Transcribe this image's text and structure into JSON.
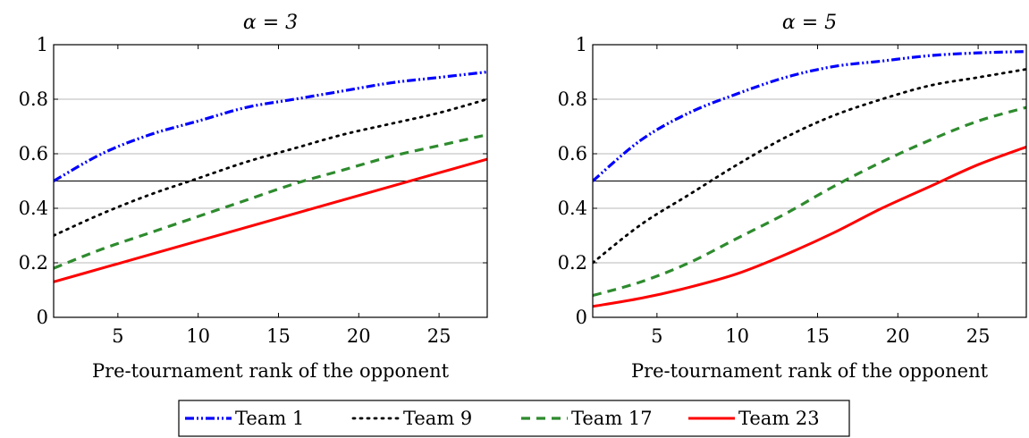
{
  "chart_data": [
    {
      "type": "line",
      "title": "α = 3",
      "xlabel": "Pre-tournament rank of the opponent",
      "ylabel": "",
      "xlim": [
        1,
        28
      ],
      "ylim": [
        0,
        1
      ],
      "xticks": [
        "5",
        "10",
        "15",
        "20",
        "25"
      ],
      "yticks": [
        "0",
        "0.2",
        "0.4",
        "0.6",
        "0.8",
        "1"
      ],
      "grid": "horizontal",
      "reference_line": 0.5,
      "x": [
        1,
        4,
        7,
        10,
        13,
        16,
        19,
        22,
        25,
        28
      ],
      "series": [
        {
          "name": "Team 1",
          "color": "#0000ff",
          "style": "dash-dot-dot",
          "values": [
            0.5,
            0.6,
            0.67,
            0.72,
            0.77,
            0.8,
            0.83,
            0.86,
            0.88,
            0.9
          ]
        },
        {
          "name": "Team 9",
          "color": "#000000",
          "style": "dotted",
          "values": [
            0.3,
            0.38,
            0.45,
            0.51,
            0.57,
            0.62,
            0.67,
            0.71,
            0.75,
            0.8
          ]
        },
        {
          "name": "Team 17",
          "color": "#2e8b2e",
          "style": "dashed",
          "values": [
            0.18,
            0.25,
            0.31,
            0.37,
            0.43,
            0.49,
            0.54,
            0.59,
            0.63,
            0.67
          ]
        },
        {
          "name": "Team 23",
          "color": "#ff0000",
          "style": "solid",
          "values": [
            0.13,
            0.18,
            0.23,
            0.28,
            0.33,
            0.38,
            0.43,
            0.48,
            0.53,
            0.58
          ]
        }
      ]
    },
    {
      "type": "line",
      "title": "α = 5",
      "xlabel": "Pre-tournament rank of the opponent",
      "ylabel": "",
      "xlim": [
        1,
        28
      ],
      "ylim": [
        0,
        1
      ],
      "xticks": [
        "5",
        "10",
        "15",
        "20",
        "25"
      ],
      "yticks": [
        "0",
        "0.2",
        "0.4",
        "0.6",
        "0.8",
        "1"
      ],
      "grid": "horizontal",
      "reference_line": 0.5,
      "x": [
        1,
        4,
        7,
        10,
        13,
        16,
        19,
        22,
        25,
        28
      ],
      "series": [
        {
          "name": "Team 1",
          "color": "#0000ff",
          "style": "dash-dot-dot",
          "values": [
            0.5,
            0.65,
            0.75,
            0.82,
            0.88,
            0.92,
            0.94,
            0.96,
            0.97,
            0.975
          ]
        },
        {
          "name": "Team 9",
          "color": "#000000",
          "style": "dotted",
          "values": [
            0.2,
            0.34,
            0.45,
            0.56,
            0.66,
            0.74,
            0.8,
            0.85,
            0.88,
            0.91
          ]
        },
        {
          "name": "Team 17",
          "color": "#2e8b2e",
          "style": "dashed",
          "values": [
            0.08,
            0.13,
            0.2,
            0.29,
            0.38,
            0.48,
            0.57,
            0.65,
            0.72,
            0.77
          ]
        },
        {
          "name": "Team 23",
          "color": "#ff0000",
          "style": "solid",
          "values": [
            0.04,
            0.07,
            0.11,
            0.16,
            0.23,
            0.31,
            0.4,
            0.48,
            0.56,
            0.625
          ]
        }
      ]
    }
  ],
  "legend": {
    "entries": [
      {
        "label": "Team 1",
        "color": "#0000ff",
        "style": "dash-dot-dot"
      },
      {
        "label": "Team 9",
        "color": "#000000",
        "style": "dotted"
      },
      {
        "label": "Team 17",
        "color": "#2e8b2e",
        "style": "dashed"
      },
      {
        "label": "Team 23",
        "color": "#ff0000",
        "style": "solid"
      }
    ]
  }
}
